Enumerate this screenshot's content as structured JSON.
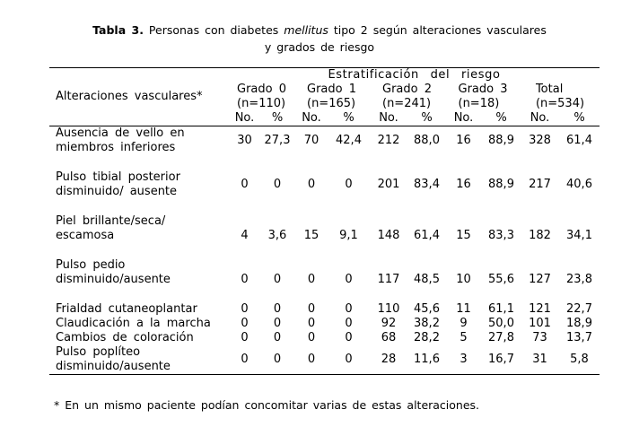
{
  "title": {
    "prefix": "Tabla 3.",
    "segment1": " Personas con diabetes ",
    "italic": "mellitus",
    "segment2": " tipo 2 según alteraciones vasculares",
    "line2": "y grados de riesgo"
  },
  "table": {
    "corner_header": "Alteraciones vasculares*",
    "span_header": "Estratificación del riesgo",
    "groups": [
      {
        "name": "Grado 0",
        "n": "(n=110)"
      },
      {
        "name": "Grado 1",
        "n": "(n=165)"
      },
      {
        "name": "Grado 2",
        "n": "(n=241)"
      },
      {
        "name": "Grado 3",
        "n": "(n=18)"
      },
      {
        "name": "Total",
        "n": "(n=534)"
      }
    ],
    "subheaders": {
      "count": "No.",
      "percent": "%"
    },
    "rows": [
      {
        "label": [
          "Ausencia de vello en",
          "miembros inferiores"
        ],
        "values": [
          "30",
          "27,3",
          "70",
          "42,4",
          "212",
          "88,0",
          "16",
          "88,9",
          "328",
          "61,4"
        ]
      },
      {
        "label": [
          "Pulso tibial posterior",
          "disminuido/ ausente"
        ],
        "values": [
          "0",
          "0",
          "0",
          "0",
          "201",
          "83,4",
          "16",
          "88,9",
          "217",
          "40,6"
        ]
      },
      {
        "label": [
          "Piel brillante/seca/",
          "escamosa"
        ],
        "values": [
          "4",
          "3,6",
          "15",
          "9,1",
          "148",
          "61,4",
          "15",
          "83,3",
          "182",
          "34,1"
        ]
      },
      {
        "label": [
          "Pulso pedio",
          "disminuido/ausente"
        ],
        "values": [
          "0",
          "0",
          "0",
          "0",
          "117",
          "48,5",
          "10",
          "55,6",
          "127",
          "23,8"
        ]
      },
      {
        "label": [
          "Frialdad cutaneoplantar"
        ],
        "values": [
          "0",
          "0",
          "0",
          "0",
          "110",
          "45,6",
          "11",
          "61,1",
          "121",
          "22,7"
        ]
      },
      {
        "label": [
          "Claudicación a la marcha"
        ],
        "values": [
          "0",
          "0",
          "0",
          "0",
          "92",
          "38,2",
          "9",
          "50,0",
          "101",
          "18,9"
        ]
      },
      {
        "label": [
          "Cambios de coloración"
        ],
        "values": [
          "0",
          "0",
          "0",
          "0",
          "68",
          "28,2",
          "5",
          "27,8",
          "73",
          "13,7"
        ]
      },
      {
        "label": [
          "Pulso poplíteo",
          "disminuido/ausente"
        ],
        "values": [
          "0",
          "0",
          "0",
          "0",
          "28",
          "11,6",
          "3",
          "16,7",
          "31",
          "5,8"
        ]
      }
    ]
  },
  "footnote": "* En un mismo paciente podían concomitar varias de estas alteraciones."
}
